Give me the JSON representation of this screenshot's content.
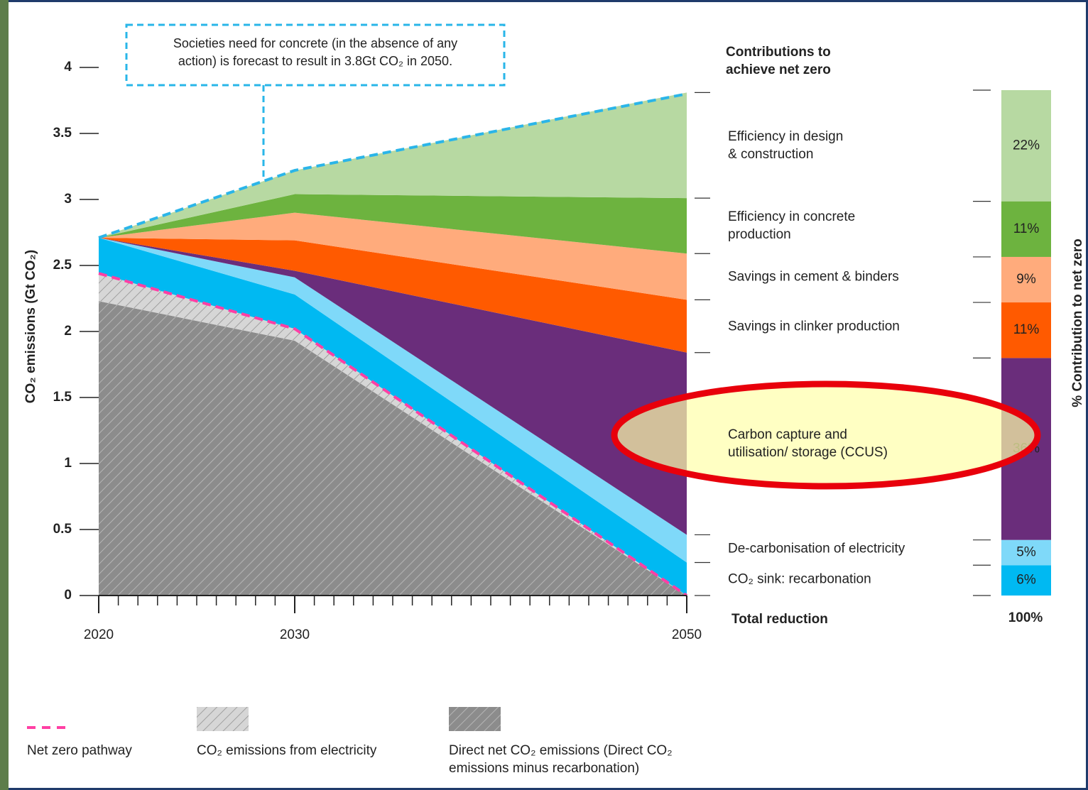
{
  "chart_data": {
    "type": "area",
    "annotation": "Societies need for concrete (in the absence of any\naction) is forecast to result in 3.8Gt CO₂ in 2050.",
    "y_label": "CO₂ emissions (Gt CO₂)",
    "x": [
      2020,
      2030,
      2050
    ],
    "xlim": [
      2020,
      2050
    ],
    "xticks": [
      2020,
      2030,
      2050
    ],
    "xminorticks": [
      2021,
      2022,
      2023,
      2024,
      2025,
      2026,
      2027,
      2028,
      2029,
      2031,
      2032,
      2033,
      2034,
      2035,
      2036,
      2037,
      2038,
      2039,
      2040,
      2041,
      2042,
      2043,
      2044,
      2045,
      2046,
      2047,
      2048,
      2049
    ],
    "ylim": [
      0,
      4
    ],
    "yticks": [
      0,
      0.5,
      1,
      1.5,
      2,
      2.5,
      3,
      3.5,
      4
    ],
    "series": [
      {
        "name": "Direct net CO₂ emissions (Direct CO₂\nemissions minus recarbonation)",
        "color": "#8c8c8c",
        "hatch": true,
        "values": [
          2.23,
          1.93,
          0
        ]
      },
      {
        "name": "CO₂ emissions from electricity",
        "color": "#d2d2d2",
        "hatch": true,
        "values": [
          0.21,
          0.09,
          0
        ]
      },
      {
        "name": "CO₂ sink: recarbonation",
        "color": "#00b9f2",
        "values": [
          0.27,
          0.26,
          0.25
        ],
        "contribution": 6,
        "contribution_label": "6%"
      },
      {
        "name": "De-carbonisation of electricity",
        "color": "#7fd9f9",
        "values": [
          0,
          0.13,
          0.21
        ],
        "contribution": 5,
        "contribution_label": "5%"
      },
      {
        "name": "Carbon capture and\nutilisation/ storage (CCUS)",
        "color": "#6a2d7b",
        "values": [
          0,
          0.05,
          1.38
        ],
        "contribution": 36,
        "contribution_label": "36%"
      },
      {
        "name": "Savings in clinker production",
        "color": "#ff5a00",
        "values": [
          0,
          0.23,
          0.4
        ],
        "contribution": 11,
        "contribution_label": "11%"
      },
      {
        "name": "Savings in cement & binders",
        "color": "#ffab7c",
        "values": [
          0,
          0.21,
          0.35
        ],
        "contribution": 9,
        "contribution_label": "9%"
      },
      {
        "name": "Efficiency in concrete\nproduction",
        "color": "#6db33f",
        "values": [
          0,
          0.14,
          0.42
        ],
        "contribution": 11,
        "contribution_label": "11%"
      },
      {
        "name": "Efficiency in design\n& construction",
        "color": "#b7d9a2",
        "values": [
          0,
          0.18,
          0.8
        ],
        "contribution": 22,
        "contribution_label": "22%"
      }
    ],
    "lines": [
      {
        "name": "Net zero pathway",
        "color": "#ff3fa4",
        "dashed": true,
        "values": [
          2.44,
          2.02,
          0
        ]
      },
      {
        "color": "#2bb5e8",
        "dashed": true,
        "values": [
          2.71,
          3.22,
          3.8
        ]
      }
    ],
    "contribution_title": "Contributions to\nachieve net zero",
    "contribution_axis_label": "% Contribution to net zero",
    "total_label": "Total reduction",
    "total_contribution": {
      "value": 100,
      "label": "100%"
    }
  }
}
